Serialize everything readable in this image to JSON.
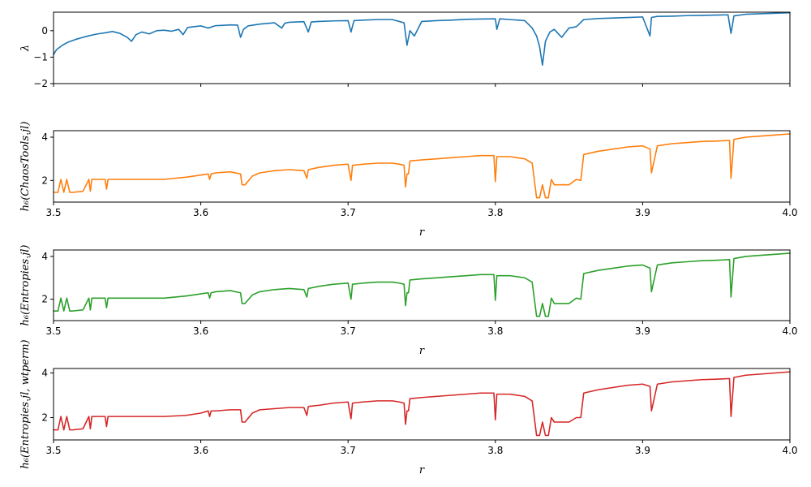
{
  "chart_data": [
    {
      "type": "line",
      "panel": 1,
      "ylabel": "λ",
      "xlabel": "",
      "xlim": [
        3.5,
        4.0
      ],
      "ylim": [
        -2,
        0.7
      ],
      "xticks": [],
      "yticks": [
        -2,
        -1,
        0
      ],
      "ytick_labels": [
        "−2",
        "−1",
        "0"
      ],
      "color": "#1f77b4",
      "series": [
        {
          "x": [
            3.5,
            3.502,
            3.506,
            3.51,
            3.515,
            3.52,
            3.525,
            3.53,
            3.535,
            3.54,
            3.545,
            3.55,
            3.553,
            3.556,
            3.56,
            3.565,
            3.57,
            3.575,
            3.58,
            3.585,
            3.588,
            3.591,
            3.595,
            3.6,
            3.605,
            3.61,
            3.614,
            3.62,
            3.625,
            3.627,
            3.629,
            3.632,
            3.64,
            3.65,
            3.655,
            3.657,
            3.66,
            3.67,
            3.673,
            3.675,
            3.68,
            3.69,
            3.7,
            3.702,
            3.704,
            3.71,
            3.72,
            3.73,
            3.738,
            3.74,
            3.742,
            3.745,
            3.75,
            3.76,
            3.77,
            3.78,
            3.79,
            3.8,
            3.801,
            3.803,
            3.81,
            3.82,
            3.825,
            3.828,
            3.83,
            3.832,
            3.834,
            3.837,
            3.84,
            3.845,
            3.85,
            3.855,
            3.86,
            3.87,
            3.88,
            3.89,
            3.9,
            3.905,
            3.906,
            3.91,
            3.92,
            3.93,
            3.94,
            3.95,
            3.958,
            3.96,
            3.962,
            3.97,
            3.98,
            3.99,
            4.0
          ],
          "y": [
            -0.9,
            -0.72,
            -0.55,
            -0.43,
            -0.33,
            -0.25,
            -0.18,
            -0.12,
            -0.08,
            -0.03,
            -0.1,
            -0.25,
            -0.4,
            -0.15,
            -0.05,
            -0.12,
            0.0,
            0.02,
            -0.02,
            0.05,
            -0.15,
            0.12,
            0.15,
            0.18,
            0.1,
            0.19,
            0.2,
            0.22,
            0.21,
            -0.25,
            0.05,
            0.18,
            0.25,
            0.3,
            0.1,
            0.28,
            0.32,
            0.34,
            -0.05,
            0.33,
            0.35,
            0.37,
            0.38,
            -0.05,
            0.38,
            0.4,
            0.42,
            0.42,
            0.3,
            -0.55,
            0.0,
            -0.2,
            0.35,
            0.38,
            0.4,
            0.43,
            0.44,
            0.45,
            0.05,
            0.45,
            0.42,
            0.38,
            0.1,
            -0.2,
            -0.6,
            -1.3,
            -0.4,
            -0.05,
            0.05,
            -0.25,
            0.1,
            0.15,
            0.42,
            0.46,
            0.48,
            0.5,
            0.52,
            -0.2,
            0.5,
            0.54,
            0.55,
            0.57,
            0.58,
            0.59,
            0.6,
            -0.1,
            0.56,
            0.62,
            0.64,
            0.66,
            0.68
          ]
        }
      ]
    },
    {
      "type": "line",
      "panel": 2,
      "ylabel": "h₆(ChaosTools.jl)",
      "xlabel": "r",
      "xlim": [
        3.5,
        4.0
      ],
      "ylim": [
        1.0,
        4.3
      ],
      "xticks": [
        3.5,
        3.6,
        3.7,
        3.8,
        3.9,
        4.0
      ],
      "xtick_labels": [
        "3.5",
        "3.6",
        "3.7",
        "3.8",
        "3.9",
        "4.0"
      ],
      "yticks": [
        2,
        4
      ],
      "ytick_labels": [
        "2",
        "4"
      ],
      "color": "#ff7f0e",
      "series": [
        {
          "x": [
            3.5,
            3.503,
            3.505,
            3.507,
            3.509,
            3.511,
            3.513,
            3.52,
            3.524,
            3.525,
            3.526,
            3.535,
            3.536,
            3.537,
            3.55,
            3.575,
            3.59,
            3.6,
            3.605,
            3.606,
            3.607,
            3.61,
            3.62,
            3.627,
            3.628,
            3.63,
            3.635,
            3.64,
            3.65,
            3.66,
            3.67,
            3.672,
            3.673,
            3.68,
            3.69,
            3.7,
            3.702,
            3.703,
            3.71,
            3.72,
            3.73,
            3.735,
            3.738,
            3.739,
            3.74,
            3.741,
            3.742,
            3.75,
            3.76,
            3.77,
            3.78,
            3.79,
            3.799,
            3.8,
            3.801,
            3.81,
            3.82,
            3.825,
            3.828,
            3.83,
            3.832,
            3.834,
            3.836,
            3.838,
            3.84,
            3.85,
            3.855,
            3.858,
            3.86,
            3.87,
            3.88,
            3.89,
            3.9,
            3.905,
            3.906,
            3.91,
            3.92,
            3.93,
            3.94,
            3.95,
            3.959,
            3.96,
            3.962,
            3.97,
            3.98,
            3.99,
            4.0
          ],
          "y": [
            1.45,
            1.45,
            2.05,
            1.45,
            2.05,
            1.45,
            1.45,
            1.5,
            2.05,
            1.5,
            2.05,
            2.05,
            1.6,
            2.05,
            2.05,
            2.05,
            2.15,
            2.25,
            2.3,
            2.05,
            2.3,
            2.35,
            2.4,
            2.3,
            1.8,
            1.8,
            2.2,
            2.35,
            2.45,
            2.5,
            2.45,
            2.1,
            2.5,
            2.6,
            2.7,
            2.75,
            2.0,
            2.7,
            2.75,
            2.8,
            2.8,
            2.75,
            2.7,
            1.7,
            2.3,
            2.3,
            2.9,
            2.95,
            3.0,
            3.05,
            3.1,
            3.15,
            3.15,
            1.95,
            3.1,
            3.1,
            3.0,
            2.8,
            1.2,
            1.2,
            1.8,
            1.2,
            1.2,
            2.05,
            1.8,
            1.8,
            2.05,
            2.0,
            3.2,
            3.35,
            3.45,
            3.55,
            3.6,
            3.45,
            2.35,
            3.6,
            3.7,
            3.75,
            3.8,
            3.82,
            3.85,
            2.1,
            3.9,
            4.0,
            4.05,
            4.1,
            4.15
          ]
        }
      ]
    },
    {
      "type": "line",
      "panel": 3,
      "ylabel": "h₆(Entropies.jl)",
      "xlabel": "r",
      "xlim": [
        3.5,
        4.0
      ],
      "ylim": [
        1.0,
        4.3
      ],
      "xticks": [
        3.5,
        3.6,
        3.7,
        3.8,
        3.9,
        4.0
      ],
      "xtick_labels": [
        "3.5",
        "3.6",
        "3.7",
        "3.8",
        "3.9",
        "4.0"
      ],
      "yticks": [
        2,
        4
      ],
      "ytick_labels": [
        "2",
        "4"
      ],
      "color": "#2ca02c",
      "series": [
        {
          "x": [
            3.5,
            3.503,
            3.505,
            3.507,
            3.509,
            3.511,
            3.513,
            3.52,
            3.524,
            3.525,
            3.526,
            3.535,
            3.536,
            3.537,
            3.55,
            3.575,
            3.59,
            3.6,
            3.605,
            3.606,
            3.607,
            3.61,
            3.62,
            3.627,
            3.628,
            3.63,
            3.635,
            3.64,
            3.65,
            3.66,
            3.67,
            3.672,
            3.673,
            3.68,
            3.69,
            3.7,
            3.702,
            3.703,
            3.71,
            3.72,
            3.73,
            3.735,
            3.738,
            3.739,
            3.74,
            3.741,
            3.742,
            3.75,
            3.76,
            3.77,
            3.78,
            3.79,
            3.799,
            3.8,
            3.801,
            3.81,
            3.82,
            3.825,
            3.828,
            3.83,
            3.832,
            3.834,
            3.836,
            3.838,
            3.84,
            3.85,
            3.855,
            3.858,
            3.86,
            3.87,
            3.88,
            3.89,
            3.9,
            3.905,
            3.906,
            3.91,
            3.92,
            3.93,
            3.94,
            3.95,
            3.959,
            3.96,
            3.962,
            3.97,
            3.98,
            3.99,
            4.0
          ],
          "y": [
            1.45,
            1.45,
            2.05,
            1.45,
            2.05,
            1.45,
            1.45,
            1.5,
            2.05,
            1.5,
            2.05,
            2.05,
            1.6,
            2.05,
            2.05,
            2.05,
            2.15,
            2.25,
            2.3,
            2.05,
            2.3,
            2.35,
            2.4,
            2.3,
            1.8,
            1.8,
            2.2,
            2.35,
            2.45,
            2.5,
            2.45,
            2.1,
            2.5,
            2.6,
            2.7,
            2.75,
            2.0,
            2.7,
            2.75,
            2.8,
            2.8,
            2.75,
            2.7,
            1.7,
            2.3,
            2.3,
            2.9,
            2.95,
            3.0,
            3.05,
            3.1,
            3.15,
            3.15,
            1.95,
            3.1,
            3.1,
            3.0,
            2.8,
            1.2,
            1.2,
            1.8,
            1.2,
            1.2,
            2.05,
            1.8,
            1.8,
            2.05,
            2.0,
            3.2,
            3.35,
            3.45,
            3.55,
            3.6,
            3.45,
            2.35,
            3.6,
            3.7,
            3.75,
            3.8,
            3.82,
            3.85,
            2.1,
            3.9,
            4.0,
            4.05,
            4.1,
            4.15
          ]
        }
      ]
    },
    {
      "type": "line",
      "panel": 4,
      "ylabel": "h₆(Entropies.jl, wtperm)",
      "xlabel": "r",
      "xlim": [
        3.5,
        4.0
      ],
      "ylim": [
        1.0,
        4.2
      ],
      "xticks": [
        3.5,
        3.6,
        3.7,
        3.8,
        3.9,
        4.0
      ],
      "xtick_labels": [
        "3.5",
        "3.6",
        "3.7",
        "3.8",
        "3.9",
        "4.0"
      ],
      "yticks": [
        2,
        4
      ],
      "ytick_labels": [
        "2",
        "4"
      ],
      "color": "#d62728",
      "series": [
        {
          "x": [
            3.5,
            3.503,
            3.505,
            3.507,
            3.509,
            3.511,
            3.513,
            3.52,
            3.524,
            3.525,
            3.526,
            3.535,
            3.536,
            3.537,
            3.55,
            3.575,
            3.59,
            3.6,
            3.605,
            3.606,
            3.607,
            3.61,
            3.62,
            3.627,
            3.628,
            3.63,
            3.635,
            3.64,
            3.65,
            3.66,
            3.67,
            3.672,
            3.673,
            3.68,
            3.69,
            3.7,
            3.702,
            3.703,
            3.71,
            3.72,
            3.73,
            3.735,
            3.738,
            3.739,
            3.74,
            3.741,
            3.742,
            3.75,
            3.76,
            3.77,
            3.78,
            3.79,
            3.799,
            3.8,
            3.801,
            3.81,
            3.82,
            3.825,
            3.828,
            3.83,
            3.832,
            3.834,
            3.836,
            3.838,
            3.84,
            3.85,
            3.855,
            3.858,
            3.86,
            3.87,
            3.88,
            3.89,
            3.9,
            3.905,
            3.906,
            3.91,
            3.92,
            3.93,
            3.94,
            3.95,
            3.959,
            3.96,
            3.962,
            3.97,
            3.98,
            3.99,
            4.0
          ],
          "y": [
            1.45,
            1.45,
            2.05,
            1.45,
            2.05,
            1.45,
            1.45,
            1.5,
            2.05,
            1.5,
            2.05,
            2.05,
            1.6,
            2.05,
            2.05,
            2.05,
            2.1,
            2.2,
            2.3,
            2.05,
            2.3,
            2.3,
            2.35,
            2.35,
            1.8,
            1.8,
            2.2,
            2.35,
            2.4,
            2.45,
            2.45,
            2.1,
            2.5,
            2.55,
            2.65,
            2.7,
            1.95,
            2.65,
            2.7,
            2.75,
            2.75,
            2.7,
            2.65,
            1.7,
            2.3,
            2.3,
            2.85,
            2.9,
            2.95,
            3.0,
            3.05,
            3.1,
            3.1,
            1.9,
            3.05,
            3.05,
            2.95,
            2.75,
            1.2,
            1.2,
            1.8,
            1.2,
            1.2,
            2.0,
            1.8,
            1.8,
            2.0,
            2.0,
            3.1,
            3.25,
            3.35,
            3.45,
            3.5,
            3.4,
            2.3,
            3.5,
            3.6,
            3.65,
            3.7,
            3.72,
            3.75,
            2.05,
            3.8,
            3.9,
            3.95,
            4.0,
            4.05
          ]
        }
      ]
    }
  ]
}
